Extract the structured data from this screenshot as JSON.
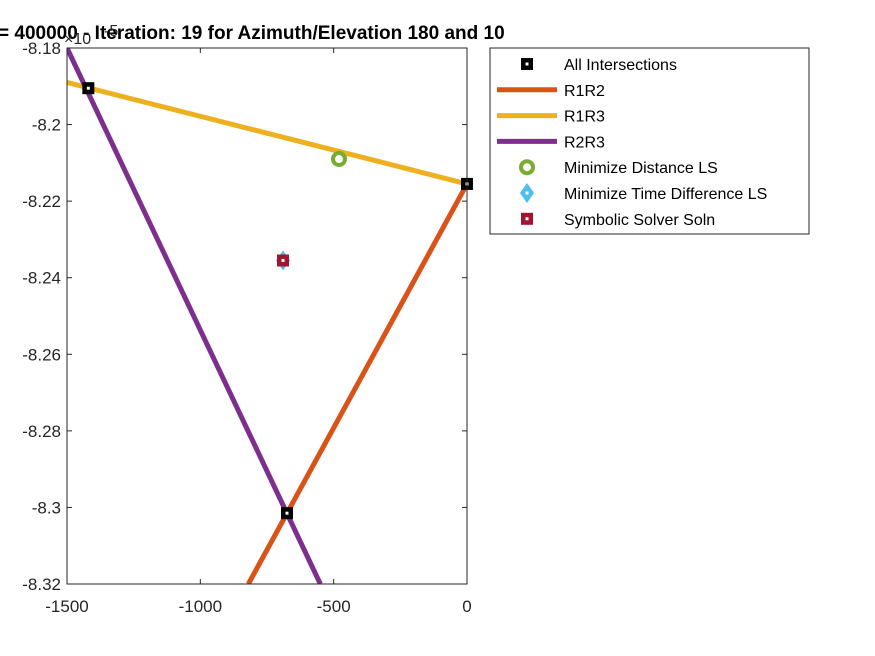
{
  "chart_data": {
    "type": "line",
    "title": "= 400000 - Iteration: 19 for Azimuth/Elevation 180 and 10",
    "y_exponent_label": "×10",
    "y_exponent_power": "-5",
    "xlim": [
      -1500,
      0
    ],
    "ylim": [
      -8.32,
      -8.18
    ],
    "x_ticks": [
      -1500,
      -1000,
      -500,
      0
    ],
    "x_tick_labels": [
      "-1500",
      "-1000",
      "-500",
      "0"
    ],
    "y_ticks": [
      -8.32,
      -8.3,
      -8.28,
      -8.26,
      -8.24,
      -8.22,
      -8.2,
      -8.18
    ],
    "y_tick_labels": [
      "-8.32",
      "-8.3",
      "-8.28",
      "-8.26",
      "-8.24",
      "-8.22",
      "-8.2",
      "-8.18"
    ],
    "grid": false,
    "legend_position": "outside-top-right",
    "series": [
      {
        "name": "R1R2",
        "kind": "line",
        "color": "#D95319",
        "x": [
          0,
          -820
        ],
        "y": [
          -8.2155,
          -8.32
        ]
      },
      {
        "name": "R1R3",
        "kind": "line",
        "color": "#EDB120",
        "x": [
          -1500,
          0
        ],
        "y": [
          -8.189,
          -8.2155
        ]
      },
      {
        "name": "R2R3",
        "kind": "line",
        "color": "#7E2F8E",
        "x": [
          -1500,
          -550
        ],
        "y": [
          -8.18,
          -8.32
        ]
      },
      {
        "name": "All Intersections",
        "kind": "marker",
        "marker": "square",
        "color": "#000000",
        "x": [
          -1420,
          0,
          -675
        ],
        "y": [
          -8.1905,
          -8.2155,
          -8.3015
        ]
      },
      {
        "name": "Minimize Distance LS",
        "kind": "marker",
        "marker": "circle",
        "color": "#77AC30",
        "x": [
          -480
        ],
        "y": [
          -8.209
        ]
      },
      {
        "name": "Minimize Time Difference LS",
        "kind": "marker",
        "marker": "diamond",
        "color": "#4DBEEE",
        "x": [
          -690
        ],
        "y": [
          -8.2355
        ]
      },
      {
        "name": "Symbolic Solver Soln",
        "kind": "marker",
        "marker": "square-filled",
        "color": "#A2142F",
        "x": [
          -690
        ],
        "y": [
          -8.2355
        ]
      }
    ],
    "legend": [
      "All Intersections",
      "R1R2",
      "R1R3",
      "R2R3",
      "Minimize Distance LS",
      "Minimize Time Difference LS",
      "Symbolic Solver Soln"
    ]
  }
}
